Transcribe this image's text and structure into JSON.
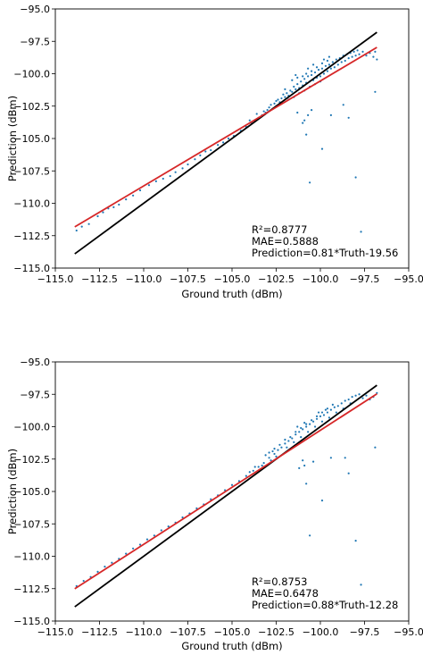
{
  "chart_data": [
    {
      "type": "scatter",
      "xlabel": "Ground truth (dBm)",
      "ylabel": "Prediction (dBm)",
      "xlim": [
        -115.0,
        -95.0
      ],
      "ylim": [
        -115.0,
        -95.0
      ],
      "xticks": [
        -115.0,
        -112.5,
        -110.0,
        -107.5,
        -105.0,
        -102.5,
        -100.0,
        -97.5,
        -95.0
      ],
      "yticks": [
        -115.0,
        -112.5,
        -110.0,
        -107.5,
        -105.0,
        -102.5,
        -100.0,
        -97.5,
        -95.0
      ],
      "xtick_labels": [
        "−115.0",
        "−112.5",
        "−110.0",
        "−107.5",
        "−105.0",
        "−102.5",
        "−100.0",
        "−97.5",
        "−95.0"
      ],
      "ytick_labels": [
        "−115.0",
        "−112.5",
        "−110.0",
        "−107.5",
        "−105.0",
        "−102.5",
        "−100.0",
        "−97.5",
        "−95.0"
      ],
      "annotations": [
        "R²=0.8777",
        "MAE=0.5888",
        "Prediction=0.81*Truth-19.56"
      ],
      "fit": {
        "slope": 0.81,
        "intercept": -19.56,
        "x_range": [
          -113.9,
          -96.8
        ],
        "color": "#d62728"
      },
      "identity_line": {
        "x_range": [
          -113.9,
          -96.8
        ],
        "color": "#000000"
      },
      "point_color": "#1f77b4",
      "points": [
        [
          -113.8,
          -112.1
        ],
        [
          -113.5,
          -111.8
        ],
        [
          -113.1,
          -111.6
        ],
        [
          -112.6,
          -111.0
        ],
        [
          -112.3,
          -110.7
        ],
        [
          -112.0,
          -110.4
        ],
        [
          -111.7,
          -110.3
        ],
        [
          -111.4,
          -110.1
        ],
        [
          -111.0,
          -109.7
        ],
        [
          -110.6,
          -109.4
        ],
        [
          -110.2,
          -109.0
        ],
        [
          -109.7,
          -108.6
        ],
        [
          -109.3,
          -108.3
        ],
        [
          -108.9,
          -108.1
        ],
        [
          -108.5,
          -107.9
        ],
        [
          -108.2,
          -107.6
        ],
        [
          -107.8,
          -107.3
        ],
        [
          -107.5,
          -107.0
        ],
        [
          -107.1,
          -106.6
        ],
        [
          -106.8,
          -106.3
        ],
        [
          -106.5,
          -106.0
        ],
        [
          -106.2,
          -105.9
        ],
        [
          -105.8,
          -105.5
        ],
        [
          -105.5,
          -105.3
        ],
        [
          -105.2,
          -105.0
        ],
        [
          -104.9,
          -104.8
        ],
        [
          -104.5,
          -104.4
        ],
        [
          -104.2,
          -104.1
        ],
        [
          -103.9,
          -103.8
        ],
        [
          -103.7,
          -103.6
        ],
        [
          -103.5,
          -103.4
        ],
        [
          -103.3,
          -103.2
        ],
        [
          -103.1,
          -103.0
        ],
        [
          -103.0,
          -102.8
        ],
        [
          -102.9,
          -102.6
        ],
        [
          -102.7,
          -102.7
        ],
        [
          -102.6,
          -102.3
        ],
        [
          -102.5,
          -102.5
        ],
        [
          -102.4,
          -102.0
        ],
        [
          -102.3,
          -102.2
        ],
        [
          -102.2,
          -101.9
        ],
        [
          -102.1,
          -101.6
        ],
        [
          -102.0,
          -101.8
        ],
        [
          -101.9,
          -101.5
        ],
        [
          -101.8,
          -101.7
        ],
        [
          -101.7,
          -101.3
        ],
        [
          -101.6,
          -101.4
        ],
        [
          -101.5,
          -101.0
        ],
        [
          -101.4,
          -101.2
        ],
        [
          -101.3,
          -100.8
        ],
        [
          -101.2,
          -101.1
        ],
        [
          -101.1,
          -100.6
        ],
        [
          -101.0,
          -100.9
        ],
        [
          -100.9,
          -100.4
        ],
        [
          -100.8,
          -100.7
        ],
        [
          -100.7,
          -100.2
        ],
        [
          -100.6,
          -100.6
        ],
        [
          -100.5,
          -100.1
        ],
        [
          -100.4,
          -100.5
        ],
        [
          -100.3,
          -99.9
        ],
        [
          -100.2,
          -100.3
        ],
        [
          -100.1,
          -99.7
        ],
        [
          -100.0,
          -100.2
        ],
        [
          -99.9,
          -99.6
        ],
        [
          -99.8,
          -100.0
        ],
        [
          -99.7,
          -99.4
        ],
        [
          -99.6,
          -99.8
        ],
        [
          -99.5,
          -99.3
        ],
        [
          -99.4,
          -99.6
        ],
        [
          -99.3,
          -99.1
        ],
        [
          -99.2,
          -99.5
        ],
        [
          -99.1,
          -98.9
        ],
        [
          -99.0,
          -99.3
        ],
        [
          -98.9,
          -98.8
        ],
        [
          -98.8,
          -99.1
        ],
        [
          -98.7,
          -98.6
        ],
        [
          -98.6,
          -99.0
        ],
        [
          -98.5,
          -98.5
        ],
        [
          -98.4,
          -98.8
        ],
        [
          -98.3,
          -98.4
        ],
        [
          -98.2,
          -98.7
        ],
        [
          -98.1,
          -98.3
        ],
        [
          -98.0,
          -98.6
        ],
        [
          -97.9,
          -98.2
        ],
        [
          -97.8,
          -98.5
        ],
        [
          -97.6,
          -98.3
        ],
        [
          -97.4,
          -98.6
        ],
        [
          -97.2,
          -98.4
        ],
        [
          -97.0,
          -98.7
        ],
        [
          -96.9,
          -98.3
        ],
        [
          -96.8,
          -98.9
        ],
        [
          -101.8,
          -102.0
        ],
        [
          -101.5,
          -101.8
        ],
        [
          -101.2,
          -101.5
        ],
        [
          -100.9,
          -101.3
        ],
        [
          -100.6,
          -101.0
        ],
        [
          -100.3,
          -100.8
        ],
        [
          -100.0,
          -100.6
        ],
        [
          -101.0,
          -100.2
        ],
        [
          -100.8,
          -100.0
        ],
        [
          -100.5,
          -99.8
        ],
        [
          -100.2,
          -99.5
        ],
        [
          -99.9,
          -99.2
        ],
        [
          -99.6,
          -99.0
        ],
        [
          -101.6,
          -100.5
        ],
        [
          -101.3,
          -100.3
        ],
        [
          -100.7,
          -99.6
        ],
        [
          -100.4,
          -99.3
        ],
        [
          -99.8,
          -98.9
        ],
        [
          -99.5,
          -98.7
        ],
        [
          -102.0,
          -101.2
        ],
        [
          -101.4,
          -100.1
        ],
        [
          -103.2,
          -102.9
        ],
        [
          -102.8,
          -102.4
        ],
        [
          -102.5,
          -102.1
        ],
        [
          -104.0,
          -103.6
        ],
        [
          -103.6,
          -103.1
        ],
        [
          -100.9,
          -103.6
        ],
        [
          -101.0,
          -103.8
        ],
        [
          -100.8,
          -104.7
        ],
        [
          -100.7,
          -103.2
        ],
        [
          -99.9,
          -105.8
        ],
        [
          -100.6,
          -108.4
        ],
        [
          -98.0,
          -108.0
        ],
        [
          -97.7,
          -112.2
        ],
        [
          -99.4,
          -103.2
        ],
        [
          -98.7,
          -102.4
        ],
        [
          -98.4,
          -103.4
        ],
        [
          -96.9,
          -101.4
        ],
        [
          -101.3,
          -103.0
        ],
        [
          -100.5,
          -102.8
        ]
      ]
    },
    {
      "type": "scatter",
      "xlabel": "Ground truth (dBm)",
      "ylabel": "Prediction (dBm)",
      "xlim": [
        -115.0,
        -95.0
      ],
      "ylim": [
        -115.0,
        -95.0
      ],
      "xticks": [
        -115.0,
        -112.5,
        -110.0,
        -107.5,
        -105.0,
        -102.5,
        -100.0,
        -97.5,
        -95.0
      ],
      "yticks": [
        -115.0,
        -112.5,
        -110.0,
        -107.5,
        -105.0,
        -102.5,
        -100.0,
        -97.5,
        -95.0
      ],
      "xtick_labels": [
        "−115.0",
        "−112.5",
        "−110.0",
        "−107.5",
        "−105.0",
        "−102.5",
        "−100.0",
        "−97.5",
        "−95.0"
      ],
      "ytick_labels": [
        "−115.0",
        "−112.5",
        "−110.0",
        "−107.5",
        "−105.0",
        "−102.5",
        "−100.0",
        "−97.5",
        "−95.0"
      ],
      "annotations": [
        "R²=0.8753",
        "MAE=0.6478",
        "Prediction=0.88*Truth-12.28"
      ],
      "fit": {
        "slope": 0.88,
        "intercept": -12.28,
        "x_range": [
          -113.9,
          -96.8
        ],
        "color": "#d62728"
      },
      "identity_line": {
        "x_range": [
          -113.9,
          -96.8
        ],
        "color": "#000000"
      },
      "point_color": "#1f77b4",
      "points": [
        [
          -113.8,
          -112.3
        ],
        [
          -113.4,
          -111.9
        ],
        [
          -113.0,
          -111.6
        ],
        [
          -112.6,
          -111.2
        ],
        [
          -112.2,
          -110.8
        ],
        [
          -111.8,
          -110.5
        ],
        [
          -111.4,
          -110.2
        ],
        [
          -111.0,
          -109.8
        ],
        [
          -110.6,
          -109.4
        ],
        [
          -110.2,
          -109.1
        ],
        [
          -109.8,
          -108.7
        ],
        [
          -109.4,
          -108.4
        ],
        [
          -109.0,
          -108.0
        ],
        [
          -108.6,
          -107.7
        ],
        [
          -108.2,
          -107.4
        ],
        [
          -107.8,
          -107.0
        ],
        [
          -107.4,
          -106.7
        ],
        [
          -107.0,
          -106.3
        ],
        [
          -106.6,
          -106.0
        ],
        [
          -106.2,
          -105.6
        ],
        [
          -105.8,
          -105.3
        ],
        [
          -105.4,
          -104.9
        ],
        [
          -105.0,
          -104.5
        ],
        [
          -104.6,
          -104.2
        ],
        [
          -104.2,
          -103.8
        ],
        [
          -103.8,
          -103.4
        ],
        [
          -103.5,
          -103.1
        ],
        [
          -103.2,
          -102.8
        ],
        [
          -102.9,
          -102.4
        ],
        [
          -102.6,
          -102.1
        ],
        [
          -102.4,
          -101.8
        ],
        [
          -102.2,
          -101.6
        ],
        [
          -102.0,
          -101.3
        ],
        [
          -101.8,
          -101.1
        ],
        [
          -101.6,
          -100.9
        ],
        [
          -101.4,
          -100.6
        ],
        [
          -101.2,
          -100.4
        ],
        [
          -101.0,
          -100.2
        ],
        [
          -100.8,
          -100.0
        ],
        [
          -100.6,
          -99.8
        ],
        [
          -100.4,
          -99.6
        ],
        [
          -100.2,
          -99.4
        ],
        [
          -100.0,
          -99.2
        ],
        [
          -99.8,
          -99.1
        ],
        [
          -99.6,
          -98.9
        ],
        [
          -99.4,
          -98.7
        ],
        [
          -99.2,
          -98.5
        ],
        [
          -99.0,
          -98.4
        ],
        [
          -98.8,
          -98.2
        ],
        [
          -98.6,
          -98.0
        ],
        [
          -98.4,
          -97.9
        ],
        [
          -98.2,
          -97.7
        ],
        [
          -98.0,
          -97.6
        ],
        [
          -97.8,
          -97.5
        ],
        [
          -97.6,
          -97.8
        ],
        [
          -97.4,
          -97.6
        ],
        [
          -97.2,
          -97.9
        ],
        [
          -97.0,
          -97.7
        ],
        [
          -96.8,
          -97.4
        ],
        [
          -102.9,
          -102.0
        ],
        [
          -102.6,
          -101.7
        ],
        [
          -102.3,
          -101.4
        ],
        [
          -102.0,
          -101.0
        ],
        [
          -101.7,
          -100.8
        ],
        [
          -101.4,
          -100.4
        ],
        [
          -101.1,
          -100.1
        ],
        [
          -100.8,
          -99.8
        ],
        [
          -100.5,
          -99.5
        ],
        [
          -100.2,
          -99.2
        ],
        [
          -99.9,
          -98.9
        ],
        [
          -99.6,
          -98.6
        ],
        [
          -99.3,
          -98.3
        ],
        [
          -101.9,
          -101.6
        ],
        [
          -101.5,
          -101.2
        ],
        [
          -101.1,
          -100.8
        ],
        [
          -100.7,
          -100.4
        ],
        [
          -100.3,
          -100.0
        ],
        [
          -99.9,
          -99.6
        ],
        [
          -99.5,
          -99.3
        ],
        [
          -99.1,
          -98.9
        ],
        [
          -98.7,
          -98.6
        ],
        [
          -98.3,
          -98.2
        ],
        [
          -103.1,
          -102.2
        ],
        [
          -102.7,
          -101.9
        ],
        [
          -101.3,
          -100.0
        ],
        [
          -100.9,
          -99.7
        ],
        [
          -100.1,
          -98.9
        ],
        [
          -99.7,
          -98.7
        ],
        [
          -103.3,
          -103.0
        ],
        [
          -102.8,
          -102.6
        ],
        [
          -102.5,
          -102.3
        ],
        [
          -104.0,
          -103.5
        ],
        [
          -103.7,
          -103.1
        ],
        [
          -100.9,
          -103.0
        ],
        [
          -101.0,
          -102.6
        ],
        [
          -100.8,
          -104.4
        ],
        [
          -100.6,
          -108.4
        ],
        [
          -99.9,
          -105.7
        ],
        [
          -98.0,
          -108.8
        ],
        [
          -97.7,
          -112.2
        ],
        [
          -96.9,
          -101.6
        ],
        [
          -99.4,
          -102.4
        ],
        [
          -98.6,
          -102.4
        ],
        [
          -98.4,
          -103.6
        ],
        [
          -101.2,
          -103.2
        ],
        [
          -100.4,
          -102.7
        ]
      ]
    }
  ]
}
